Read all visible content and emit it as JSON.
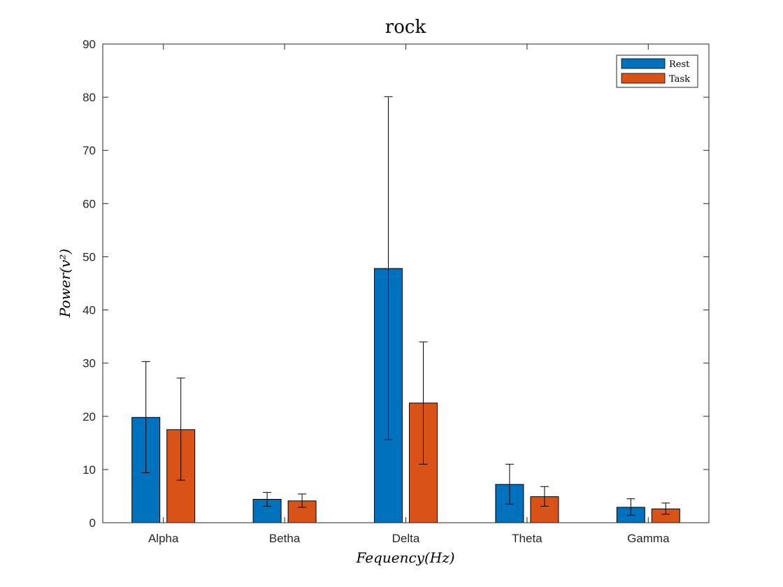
{
  "chart_data": {
    "type": "bar",
    "title": "rock",
    "xlabel": "Fequency(Hz)",
    "ylabel": "Power(v²)",
    "categories": [
      "Alpha",
      "Betha",
      "Delta",
      "Theta",
      "Gamma"
    ],
    "ylim": [
      0,
      90
    ],
    "yticks": [
      0,
      10,
      20,
      30,
      40,
      50,
      60,
      70,
      80,
      90
    ],
    "grid": false,
    "legend_position": "top-right",
    "series": [
      {
        "name": "Rest",
        "color": "#0072BD",
        "values": [
          19.8,
          4.4,
          47.8,
          7.2,
          2.9
        ],
        "error_low": [
          9.4,
          3.1,
          15.6,
          3.5,
          1.4
        ],
        "error_high": [
          30.3,
          5.7,
          80.1,
          11.0,
          4.5
        ]
      },
      {
        "name": "Task",
        "color": "#D95319",
        "values": [
          17.5,
          4.1,
          22.5,
          4.9,
          2.6
        ],
        "error_low": [
          8.0,
          2.9,
          11.0,
          3.1,
          1.6
        ],
        "error_high": [
          27.2,
          5.4,
          34.0,
          6.8,
          3.7
        ]
      }
    ]
  }
}
